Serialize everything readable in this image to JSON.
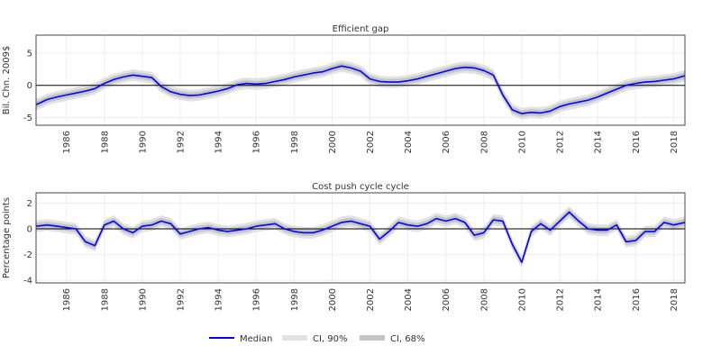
{
  "chart_data": [
    {
      "type": "line",
      "title": "Efficient gap",
      "ylabel": "Bil. Chn. 2009$",
      "xlabel": "",
      "ylim": [
        -6.2,
        7.8
      ],
      "yticks": [
        -5,
        0,
        5
      ],
      "xlim": [
        1984.4,
        2018.6
      ],
      "xticks": [
        "1986",
        "1988",
        "1990",
        "1992",
        "1994",
        "1996",
        "1998",
        "2000",
        "2002",
        "2004",
        "2006",
        "2008",
        "2010",
        "2012",
        "2014",
        "2016",
        "2018"
      ],
      "zero_line": true,
      "x": [
        1984.4,
        1985,
        1985.5,
        1986,
        1986.5,
        1987,
        1987.5,
        1988,
        1988.5,
        1989,
        1989.5,
        1990,
        1990.5,
        1991,
        1991.5,
        1992,
        1992.5,
        1993,
        1993.5,
        1994,
        1994.5,
        1995,
        1995.5,
        1996,
        1996.5,
        1997,
        1997.5,
        1998,
        1998.5,
        1999,
        1999.5,
        2000,
        2000.5,
        2001,
        2001.5,
        2002,
        2002.5,
        2003,
        2003.5,
        2004,
        2004.5,
        2005,
        2005.5,
        2006,
        2006.5,
        2007,
        2007.5,
        2008,
        2008.5,
        2009,
        2009.5,
        2010,
        2010.5,
        2011,
        2011.5,
        2012,
        2012.5,
        2013,
        2013.5,
        2014,
        2014.5,
        2015,
        2015.5,
        2016,
        2016.5,
        2017,
        2017.5,
        2018,
        2018.6
      ],
      "series": [
        {
          "name": "Median",
          "values": [
            -3,
            -2.2,
            -1.8,
            -1.5,
            -1.2,
            -0.9,
            -0.5,
            0.3,
            0.9,
            1.3,
            1.6,
            1.4,
            1.2,
            -0.2,
            -1.0,
            -1.4,
            -1.6,
            -1.5,
            -1.2,
            -0.9,
            -0.5,
            0.1,
            0.3,
            0.2,
            0.3,
            0.6,
            0.9,
            1.3,
            1.6,
            1.9,
            2.1,
            2.6,
            3.0,
            2.7,
            2.2,
            1.0,
            0.6,
            0.5,
            0.5,
            0.7,
            1.0,
            1.4,
            1.8,
            2.2,
            2.6,
            2.8,
            2.7,
            2.3,
            1.6,
            -1.5,
            -3.8,
            -4.4,
            -4.2,
            -4.3,
            -4.0,
            -3.3,
            -2.9,
            -2.6,
            -2.3,
            -1.8,
            -1.2,
            -0.6,
            0.0,
            0.3,
            0.5,
            0.6,
            0.8,
            1.0,
            1.5
          ]
        }
      ],
      "bands": [
        {
          "name": "CI, 90%",
          "halfwidth": 0.9
        },
        {
          "name": "CI, 68%",
          "halfwidth": 0.5
        }
      ]
    },
    {
      "type": "line",
      "title": "Cost push cycle cycle",
      "ylabel": "Percentage points",
      "xlabel": "",
      "ylim": [
        -4.2,
        2.8
      ],
      "yticks": [
        -4,
        -2,
        0,
        2
      ],
      "xlim": [
        1984.4,
        2018.6
      ],
      "xticks": [
        "1986",
        "1988",
        "1990",
        "1992",
        "1994",
        "1996",
        "1998",
        "2000",
        "2002",
        "2004",
        "2006",
        "2008",
        "2010",
        "2012",
        "2014",
        "2016",
        "2018"
      ],
      "zero_line": true,
      "x": [
        1984.4,
        1985,
        1985.5,
        1986,
        1986.5,
        1987,
        1987.5,
        1988,
        1988.5,
        1989,
        1989.5,
        1990,
        1990.5,
        1991,
        1991.5,
        1992,
        1992.5,
        1993,
        1993.5,
        1994,
        1994.5,
        1995,
        1995.5,
        1996,
        1996.5,
        1997,
        1997.5,
        1998,
        1998.5,
        1999,
        1999.5,
        2000,
        2000.5,
        2001,
        2001.5,
        2002,
        2002.5,
        2003,
        2003.5,
        2004,
        2004.5,
        2005,
        2005.5,
        2006,
        2006.5,
        2007,
        2007.5,
        2008,
        2008.5,
        2009,
        2009.5,
        2010,
        2010.5,
        2011,
        2011.5,
        2012,
        2012.5,
        2013,
        2013.5,
        2014,
        2014.5,
        2015,
        2015.5,
        2016,
        2016.5,
        2017,
        2017.5,
        2018,
        2018.6
      ],
      "series": [
        {
          "name": "Median",
          "values": [
            0.2,
            0.3,
            0.2,
            0.1,
            0.0,
            -1.0,
            -1.3,
            0.3,
            0.6,
            0.0,
            -0.3,
            0.2,
            0.3,
            0.6,
            0.4,
            -0.4,
            -0.2,
            0.0,
            0.1,
            -0.1,
            -0.2,
            -0.1,
            0.0,
            0.2,
            0.3,
            0.4,
            0.0,
            -0.2,
            -0.3,
            -0.3,
            -0.1,
            0.2,
            0.5,
            0.6,
            0.4,
            0.2,
            -0.8,
            -0.2,
            0.5,
            0.3,
            0.2,
            0.4,
            0.8,
            0.6,
            0.8,
            0.5,
            -0.5,
            -0.3,
            0.7,
            0.6,
            -1.2,
            -2.6,
            -0.2,
            0.4,
            -0.1,
            0.6,
            1.3,
            0.6,
            0.0,
            -0.1,
            -0.1,
            0.3,
            -1.0,
            -0.9,
            -0.2,
            -0.2,
            0.5,
            0.3,
            0.5
          ]
        }
      ],
      "bands": [
        {
          "name": "CI, 90%",
          "halfwidth": 0.45
        },
        {
          "name": "CI, 68%",
          "halfwidth": 0.25
        }
      ]
    }
  ],
  "legend": {
    "items": [
      {
        "label": "Median",
        "color": "#0000ff"
      },
      {
        "label": "CI, 90%",
        "color": "#e2e2e2"
      },
      {
        "label": "CI, 68%",
        "color": "#c4c4c4"
      }
    ]
  },
  "colors": {
    "median": "#0000ff",
    "ci90": "#e2e2e2",
    "ci68": "#c4c4c4",
    "zero_line": "#000000",
    "grid": "#eeeeee",
    "axis": "#444444"
  }
}
